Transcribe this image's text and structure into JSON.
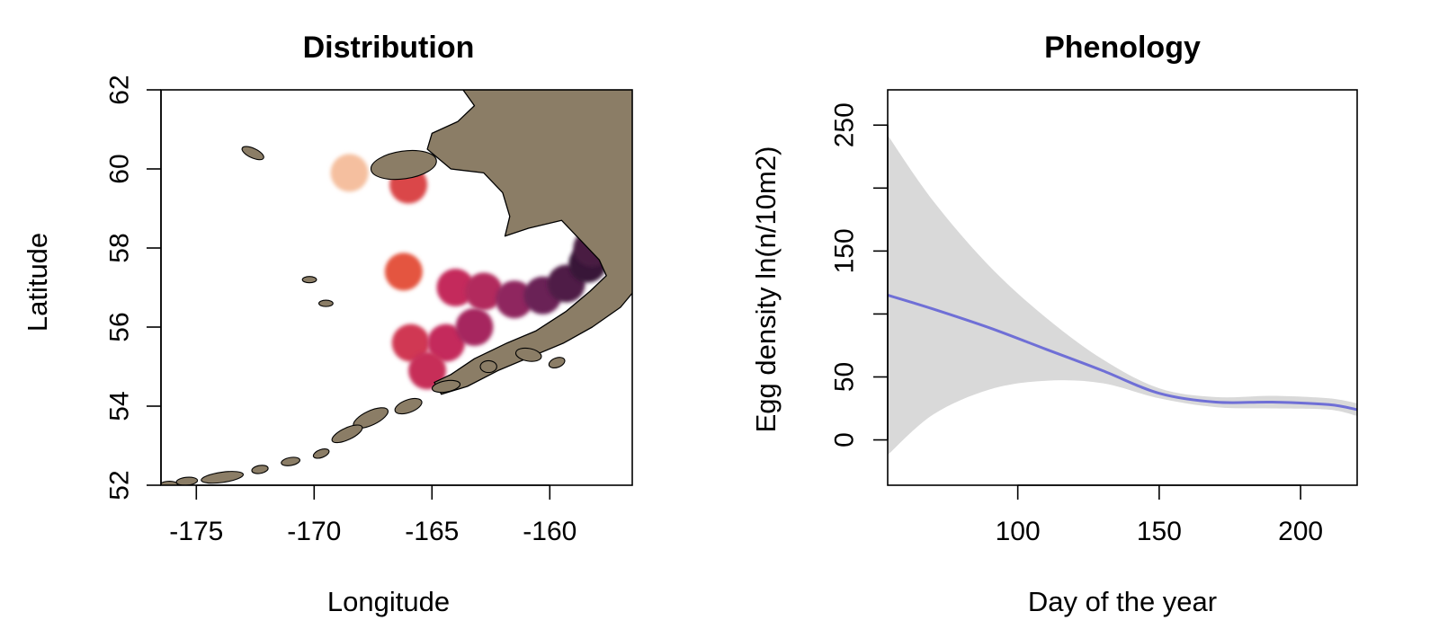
{
  "chart_data": [
    {
      "type": "heatmap",
      "title": "Distribution",
      "xlabel": "Longitude",
      "ylabel": "Latitude",
      "xlim": [
        -176.5,
        -156.5
      ],
      "ylim": [
        52,
        62
      ],
      "xticks": [
        -175,
        -170,
        -165,
        -160
      ],
      "yticks": [
        52,
        54,
        56,
        58,
        60,
        62
      ],
      "land_color": "#8b7d66",
      "coast_color": "#000000",
      "color_scale": [
        "#f8d8b8",
        "#e85a3c",
        "#c42a5c",
        "#7a2560",
        "#2a1430"
      ],
      "cells": [
        {
          "lon": -168.5,
          "lat": 59.9,
          "value": 0.05
        },
        {
          "lon": -166.0,
          "lat": 59.6,
          "value": 0.35
        },
        {
          "lon": -166.2,
          "lat": 57.4,
          "value": 0.28
        },
        {
          "lon": -164.0,
          "lat": 57.0,
          "value": 0.5
        },
        {
          "lon": -162.8,
          "lat": 56.9,
          "value": 0.56
        },
        {
          "lon": -161.5,
          "lat": 56.7,
          "value": 0.68
        },
        {
          "lon": -160.3,
          "lat": 56.8,
          "value": 0.8
        },
        {
          "lon": -159.3,
          "lat": 57.1,
          "value": 0.88
        },
        {
          "lon": -158.4,
          "lat": 57.6,
          "value": 0.96
        },
        {
          "lon": -158.2,
          "lat": 58.0,
          "value": 0.9
        },
        {
          "lon": -165.9,
          "lat": 55.6,
          "value": 0.42
        },
        {
          "lon": -164.4,
          "lat": 55.6,
          "value": 0.5
        },
        {
          "lon": -163.2,
          "lat": 56.0,
          "value": 0.6
        },
        {
          "lon": -165.2,
          "lat": 54.9,
          "value": 0.48
        }
      ]
    },
    {
      "type": "line",
      "title": "Phenology",
      "xlabel": "Day of the year",
      "ylabel": "Egg density ln(n/10m2)",
      "xlim": [
        54,
        220
      ],
      "ylim": [
        -36,
        278
      ],
      "xticks": [
        100,
        150,
        200
      ],
      "yticks": [
        0,
        50,
        150,
        250
      ],
      "line_color": "#6f6fd6",
      "band_color": "#d9d9d9",
      "x": [
        54,
        70,
        90,
        110,
        130,
        150,
        170,
        190,
        210,
        220
      ],
      "fit": [
        115,
        104,
        89,
        72,
        55,
        37,
        30,
        30,
        28,
        24
      ],
      "lower": [
        -12,
        20,
        40,
        47,
        45,
        33,
        26,
        25,
        24,
        19
      ],
      "upper": [
        242,
        190,
        138,
        97,
        64,
        41,
        34,
        35,
        33,
        29
      ]
    }
  ]
}
